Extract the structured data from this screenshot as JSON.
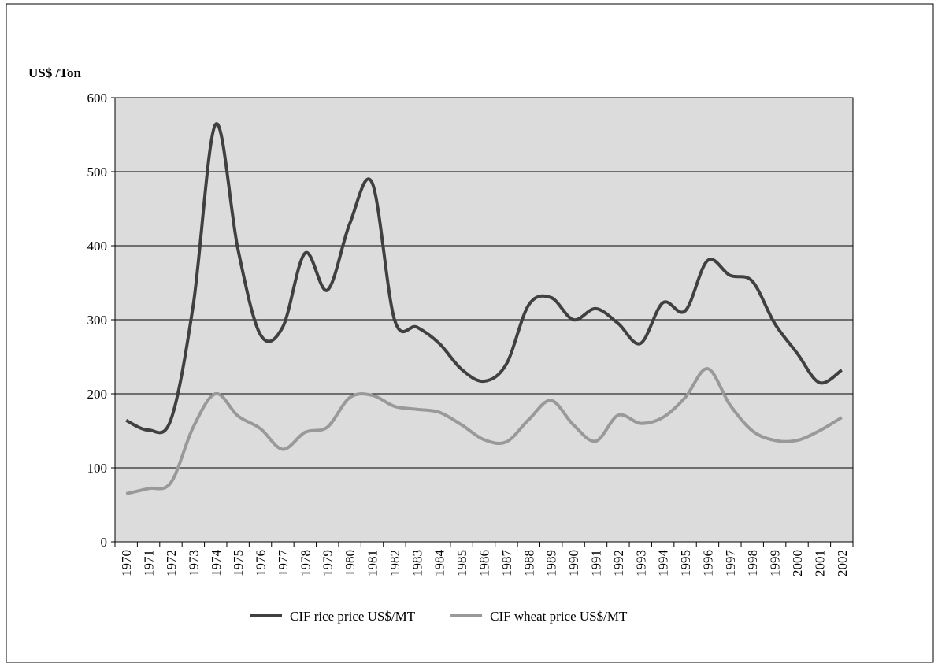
{
  "chart_data": {
    "type": "line",
    "y_label": "US$ /Ton",
    "categories": [
      "1970",
      "1971",
      "1972",
      "1973",
      "1974",
      "1975",
      "1976",
      "1977",
      "1978",
      "1979",
      "1980",
      "1981",
      "1982",
      "1983",
      "1984",
      "1985",
      "1986",
      "1987",
      "1988",
      "1989",
      "1990",
      "1991",
      "1992",
      "1993",
      "1994",
      "1995",
      "1996",
      "1997",
      "1998",
      "1999",
      "2000",
      "2001",
      "2002"
    ],
    "series": [
      {
        "name": "CIF rice price US$/MT",
        "color": "#404040",
        "values": [
          164,
          151,
          165,
          320,
          564,
          395,
          280,
          290,
          390,
          340,
          430,
          485,
          300,
          290,
          268,
          233,
          217,
          240,
          320,
          330,
          300,
          315,
          295,
          268,
          323,
          312,
          380,
          360,
          352,
          295,
          255,
          215,
          232
        ]
      },
      {
        "name": "CIF wheat price US$/MT",
        "color": "#999999",
        "values": [
          65,
          72,
          80,
          155,
          200,
          170,
          153,
          125,
          148,
          155,
          195,
          198,
          183,
          179,
          175,
          158,
          138,
          135,
          165,
          191,
          158,
          136,
          171,
          160,
          168,
          195,
          234,
          185,
          150,
          137,
          137,
          150,
          168
        ]
      }
    ],
    "ylim": [
      0,
      600
    ],
    "yticks": [
      0,
      100,
      200,
      300,
      400,
      500,
      600
    ],
    "grid": true,
    "smooth": true
  }
}
